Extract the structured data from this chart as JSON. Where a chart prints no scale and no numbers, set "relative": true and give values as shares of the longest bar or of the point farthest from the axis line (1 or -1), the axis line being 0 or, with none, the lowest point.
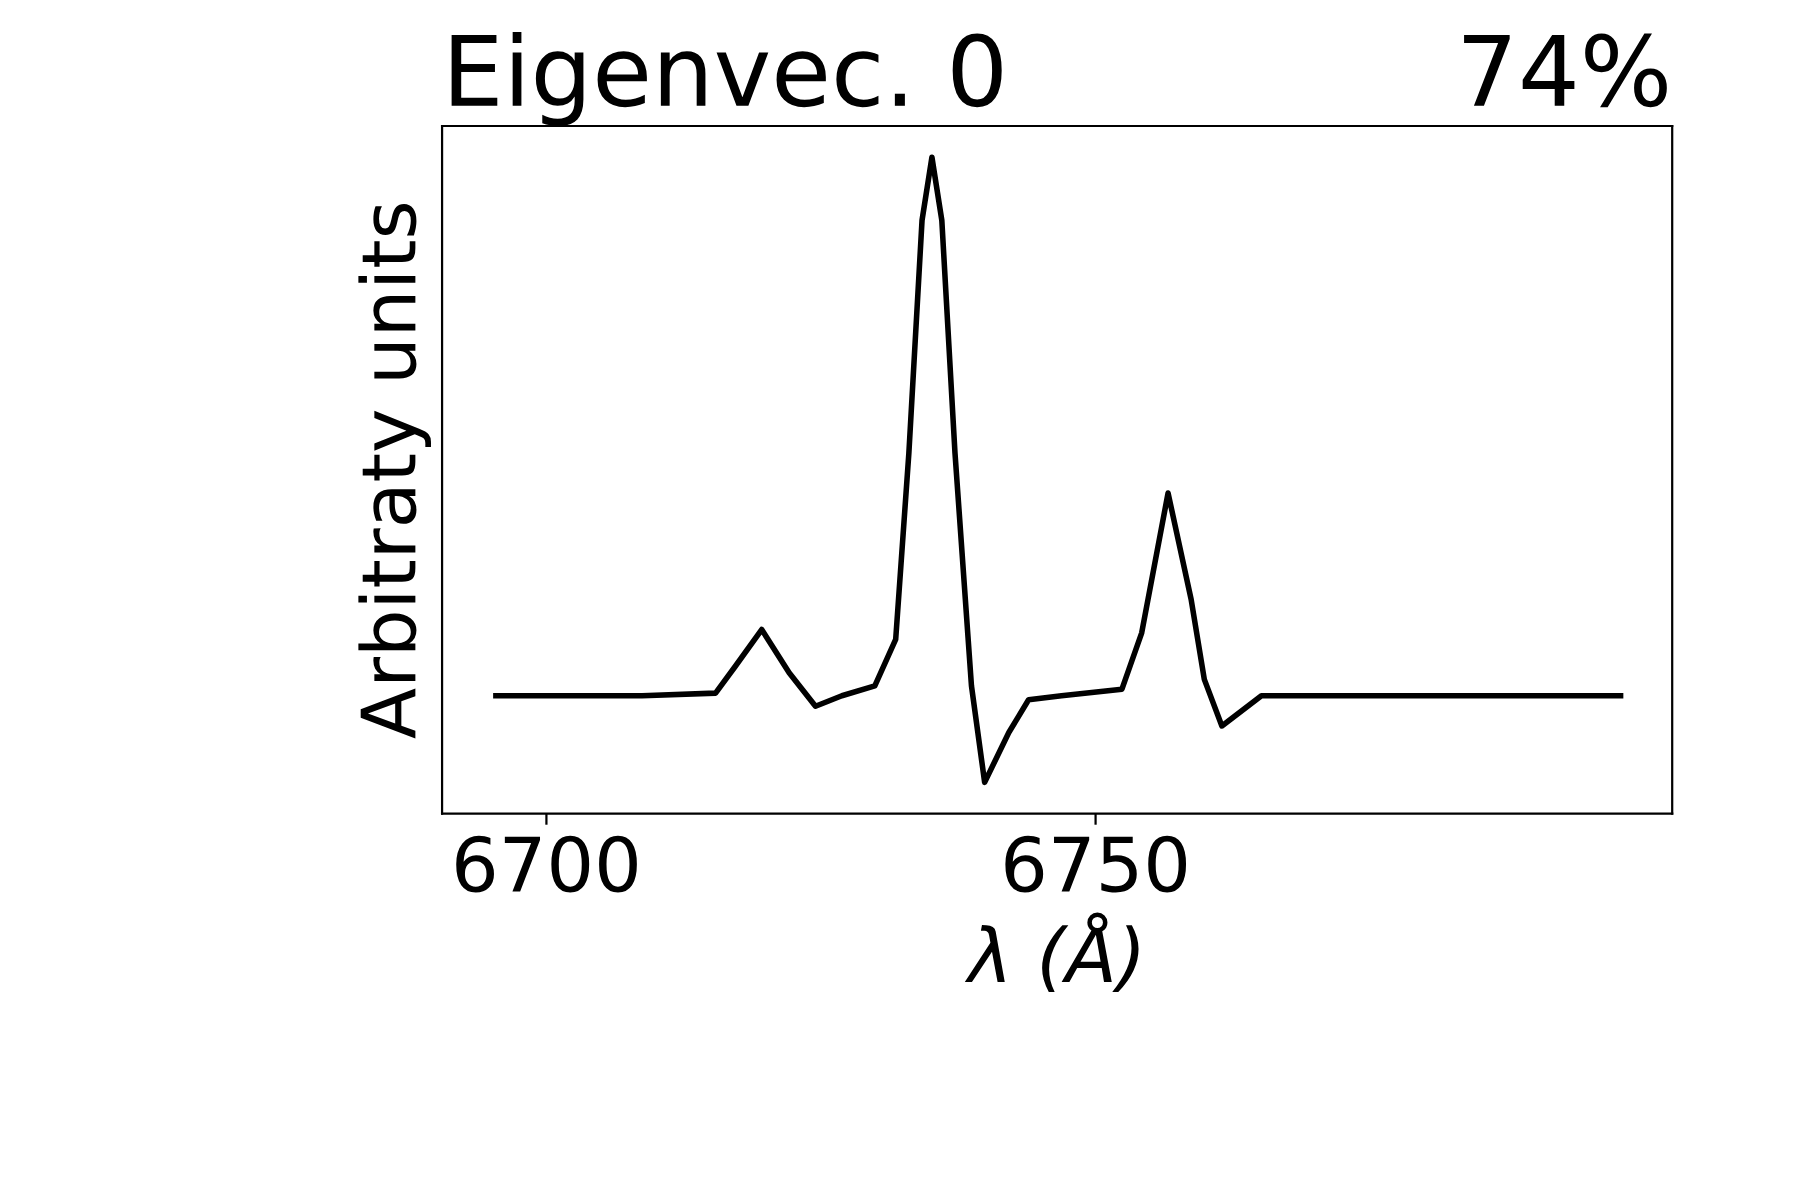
{
  "chart_data": {
    "type": "line",
    "title": "Eigenvec. 0",
    "annotations": [
      "74%"
    ],
    "xlabel": "λ (Å)",
    "ylabel": "Arbitraty units",
    "relative": true,
    "xlim": [
      6690.5,
      6802.5
    ],
    "xticks": [
      6700,
      6750
    ],
    "grid": false,
    "legend": false,
    "marker": "none",
    "line_style": "solid",
    "series": [
      {
        "color": "#000000",
        "x": [
          6695.4,
          6708.7,
          6715.4,
          6717.2,
          6719.6,
          6722.1,
          6724.5,
          6726.9,
          6729.9,
          6731.8,
          6733.0,
          6734.2,
          6735.1,
          6736.0,
          6737.2,
          6738.7,
          6739.9,
          6742.1,
          6743.9,
          6746.9,
          6752.4,
          6754.2,
          6756.6,
          6758.7,
          6759.9,
          6761.5,
          6765.1,
          6797.8
        ],
        "values": [
          0.179,
          0.179,
          0.183,
          0.224,
          0.28,
          0.214,
          0.163,
          0.179,
          0.194,
          0.265,
          0.549,
          0.904,
          1.0,
          0.904,
          0.549,
          0.194,
          0.047,
          0.123,
          0.173,
          0.179,
          0.189,
          0.275,
          0.488,
          0.326,
          0.204,
          0.133,
          0.179,
          0.179
        ]
      }
    ]
  }
}
